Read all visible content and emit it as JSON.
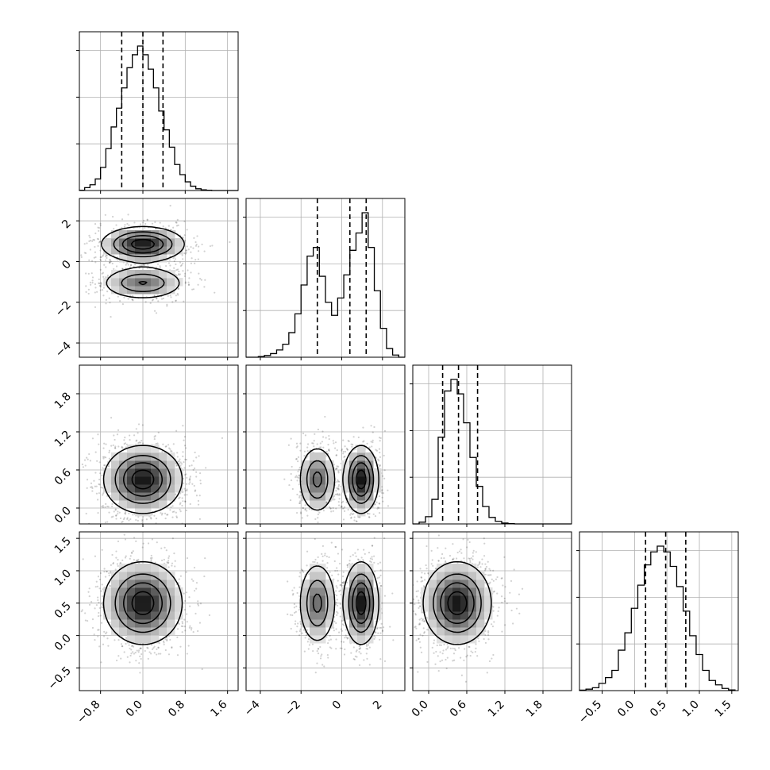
{
  "chart_data": {
    "type": "corner",
    "grid": true,
    "variables": [
      {
        "id": "p0",
        "xlim": [
          -1.2,
          1.8
        ],
        "ticks": [
          -0.8,
          0.0,
          0.8,
          1.6
        ],
        "tick_labels": [
          "−0.8",
          "0.0",
          "0.8",
          "1.6"
        ],
        "quantiles": [
          -0.4,
          0.0,
          0.38
        ],
        "histogram": {
          "bin_edges": [
            -1.2,
            -1.1,
            -1.0,
            -0.9,
            -0.8,
            -0.7,
            -0.6,
            -0.5,
            -0.4,
            -0.3,
            -0.2,
            -0.1,
            0.0,
            0.1,
            0.2,
            0.3,
            0.4,
            0.5,
            0.6,
            0.7,
            0.8,
            0.9,
            1.0,
            1.1,
            1.2,
            1.3,
            1.4,
            1.5,
            1.6,
            1.7,
            1.8
          ],
          "counts": [
            0.002,
            0.02,
            0.04,
            0.08,
            0.16,
            0.29,
            0.44,
            0.57,
            0.71,
            0.85,
            0.94,
            1.0,
            0.94,
            0.84,
            0.71,
            0.55,
            0.42,
            0.3,
            0.18,
            0.11,
            0.06,
            0.03,
            0.012,
            0.005,
            0.002,
            0,
            0,
            0,
            0,
            0
          ]
        }
      },
      {
        "id": "p1",
        "xlim": [
          -4.7,
          3.1
        ],
        "ticks": [
          -4,
          -2,
          0,
          2
        ],
        "tick_labels": [
          "−4",
          "−2",
          "0",
          "2"
        ],
        "quantiles": [
          -1.2,
          0.4,
          1.2
        ],
        "histogram": {
          "bin_edges": [
            -4.7,
            -4.4,
            -4.1,
            -3.8,
            -3.5,
            -3.2,
            -2.9,
            -2.6,
            -2.3,
            -2.0,
            -1.7,
            -1.4,
            -1.1,
            -0.8,
            -0.5,
            -0.2,
            0.1,
            0.4,
            0.7,
            1.0,
            1.3,
            1.6,
            1.9,
            2.2,
            2.5,
            2.8,
            3.1
          ],
          "counts": [
            0.0,
            0.0,
            0.005,
            0.012,
            0.025,
            0.05,
            0.09,
            0.17,
            0.3,
            0.5,
            0.7,
            0.76,
            0.56,
            0.38,
            0.29,
            0.41,
            0.57,
            0.74,
            0.86,
            1.0,
            0.76,
            0.46,
            0.2,
            0.06,
            0.015,
            0.0
          ]
        }
      },
      {
        "id": "p2",
        "xlim": [
          -0.25,
          2.25
        ],
        "ticks": [
          0.0,
          0.6,
          1.2,
          1.8
        ],
        "tick_labels": [
          "0.0",
          "0.6",
          "1.2",
          "1.8"
        ],
        "quantiles": [
          0.22,
          0.47,
          0.77
        ],
        "histogram": {
          "bin_edges": [
            -0.25,
            -0.15,
            -0.05,
            0.05,
            0.15,
            0.25,
            0.35,
            0.45,
            0.55,
            0.65,
            0.75,
            0.85,
            0.95,
            1.05,
            1.15,
            1.25,
            1.35,
            1.45,
            1.55,
            1.65,
            1.75,
            1.85,
            1.95,
            2.05,
            2.15,
            2.25
          ],
          "counts": [
            0.0,
            0.012,
            0.05,
            0.17,
            0.6,
            0.92,
            1.0,
            0.9,
            0.7,
            0.46,
            0.26,
            0.12,
            0.045,
            0.018,
            0.006,
            0.002,
            0.0,
            0.0,
            0.0,
            0.0,
            0.0,
            0.0,
            0.0,
            0.0,
            0.0
          ]
        }
      },
      {
        "id": "p3",
        "xlim": [
          -0.85,
          1.6
        ],
        "ticks": [
          -0.5,
          0.0,
          0.5,
          1.0,
          1.5
        ],
        "tick_labels": [
          "−0.5",
          "0.0",
          "0.5",
          "1.0",
          "1.5"
        ],
        "quantiles": [
          0.17,
          0.48,
          0.79
        ],
        "histogram": {
          "bin_edges": [
            -0.85,
            -0.75,
            -0.65,
            -0.55,
            -0.45,
            -0.35,
            -0.25,
            -0.15,
            -0.05,
            0.05,
            0.15,
            0.25,
            0.35,
            0.45,
            0.55,
            0.65,
            0.75,
            0.85,
            0.95,
            1.05,
            1.15,
            1.25,
            1.35,
            1.45,
            1.55
          ],
          "counts": [
            0.003,
            0.01,
            0.02,
            0.05,
            0.09,
            0.14,
            0.28,
            0.4,
            0.57,
            0.73,
            0.87,
            0.96,
            1.0,
            0.96,
            0.86,
            0.72,
            0.55,
            0.38,
            0.25,
            0.14,
            0.07,
            0.04,
            0.015,
            0.005
          ]
        }
      }
    ],
    "y_axes": [
      {
        "row": 1,
        "ylim": [
          -4.7,
          3.1
        ],
        "ticks": [
          -4,
          -2,
          0,
          2
        ],
        "tick_labels": [
          "−4",
          "−2",
          "0",
          "2"
        ]
      },
      {
        "row": 2,
        "ylim": [
          -0.25,
          2.25
        ],
        "ticks": [
          0.0,
          0.6,
          1.2,
          1.8
        ],
        "tick_labels": [
          "0.0",
          "0.6",
          "1.2",
          "1.8"
        ]
      },
      {
        "row": 3,
        "ylim": [
          -0.85,
          1.6
        ],
        "ticks": [
          -0.5,
          0.0,
          0.5,
          1.0,
          1.5
        ],
        "tick_labels": [
          "−0.5",
          "0.0",
          "0.5",
          "1.0",
          "1.5"
        ]
      }
    ],
    "density_blobs": [
      {
        "pair": [
          0,
          1
        ],
        "components": [
          {
            "center": [
              0.0,
              0.85
            ],
            "sd": [
              0.38,
              0.42
            ],
            "weight": 0.62
          },
          {
            "center": [
              0.0,
              -1.05
            ],
            "sd": [
              0.38,
              0.4
            ],
            "weight": 0.38
          }
        ]
      },
      {
        "pair": [
          0,
          2
        ],
        "components": [
          {
            "center": [
              0.0,
              0.45
            ],
            "sd": [
              0.36,
              0.26
            ],
            "weight": 1.0
          }
        ]
      },
      {
        "pair": [
          1,
          2
        ],
        "components": [
          {
            "center": [
              -1.2,
              0.45
            ],
            "sd": [
              0.45,
              0.26
            ],
            "weight": 0.4
          },
          {
            "center": [
              0.95,
              0.45
            ],
            "sd": [
              0.42,
              0.26
            ],
            "weight": 0.6
          }
        ]
      },
      {
        "pair": [
          0,
          3
        ],
        "components": [
          {
            "center": [
              0.0,
              0.5
            ],
            "sd": [
              0.36,
              0.31
            ],
            "weight": 1.0
          }
        ]
      },
      {
        "pair": [
          1,
          3
        ],
        "components": [
          {
            "center": [
              -1.2,
              0.5
            ],
            "sd": [
              0.45,
              0.31
            ],
            "weight": 0.4
          },
          {
            "center": [
              0.95,
              0.5
            ],
            "sd": [
              0.42,
              0.31
            ],
            "weight": 0.6
          }
        ]
      },
      {
        "pair": [
          2,
          3
        ],
        "components": [
          {
            "center": [
              0.45,
              0.5
            ],
            "sd": [
              0.26,
              0.31
            ],
            "weight": 1.0
          }
        ]
      }
    ],
    "contour_levels": [
      0.12,
      0.35,
      0.6,
      0.85
    ]
  }
}
